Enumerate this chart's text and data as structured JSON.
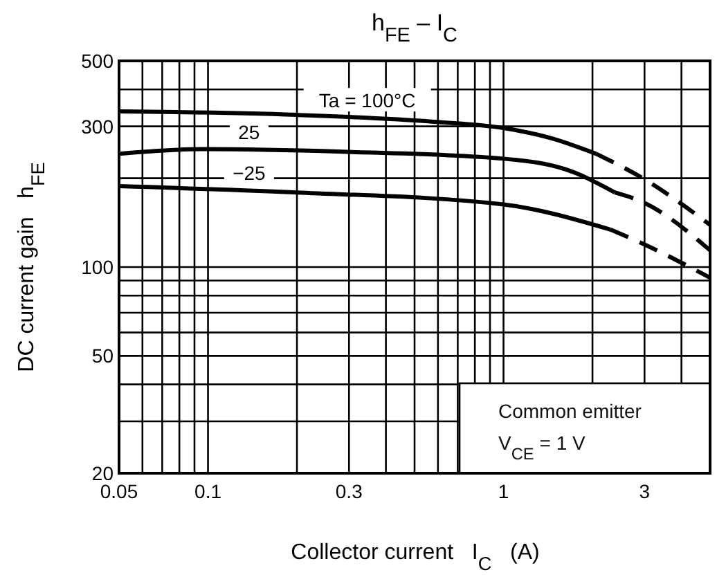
{
  "chart_data": {
    "type": "line",
    "title": "h$_{FE}$ – I$_{C}$",
    "xlabel": "Collector current   I$_{C}$   (A)",
    "ylabel": "DC current gain   h$_{FE}$",
    "log": "xy",
    "grid": true,
    "legend": false,
    "marker": "none",
    "xlim": [
      0.05,
      5
    ],
    "ylim": [
      20,
      500
    ],
    "xticks": [
      0.05,
      {
        "value": 0.06,
        "label": null
      },
      {
        "value": 0.07,
        "label": null
      },
      {
        "value": 0.08,
        "label": null
      },
      {
        "value": 0.09,
        "label": null
      },
      0.1,
      {
        "value": 0.2,
        "label": null
      },
      0.3,
      {
        "value": 0.4,
        "label": null
      },
      {
        "value": 0.5,
        "label": null
      },
      {
        "value": 0.6,
        "label": null
      },
      {
        "value": 0.7,
        "label": null
      },
      {
        "value": 0.8,
        "label": null
      },
      {
        "value": 0.9,
        "label": null
      },
      1,
      {
        "value": 2,
        "label": null
      },
      3,
      {
        "value": 4,
        "label": null
      },
      {
        "value": 5,
        "label": null
      }
    ],
    "yticks": [
      20,
      {
        "value": 30,
        "label": null
      },
      {
        "value": 40,
        "label": null
      },
      50,
      {
        "value": 60,
        "label": null
      },
      {
        "value": 70,
        "label": null
      },
      {
        "value": 80,
        "label": null
      },
      {
        "value": 90,
        "label": null
      },
      100,
      {
        "value": 200,
        "label": null
      },
      300,
      {
        "value": 400,
        "label": null
      },
      500
    ],
    "series": [
      {
        "name": "Ta = 100°C",
        "color": "#000000",
        "line_style": "solid",
        "x": [
          0.05,
          0.2,
          0.58,
          1,
          1.44,
          2.06
        ],
        "values": [
          337,
          328,
          311,
          296,
          274,
          242
        ]
      },
      {
        "color": "#000000",
        "line_style": "dashed",
        "x": [
          2.06,
          2.96,
          5
        ],
        "values": [
          242,
          200,
          139
        ]
      },
      {
        "name": "25",
        "color": "#000000",
        "line_style": "solid",
        "x": [
          0.05,
          0.096,
          0.285,
          1,
          1.72,
          2.38
        ],
        "values": [
          242,
          251,
          246,
          233,
          210,
          179
        ]
      },
      {
        "color": "#000000",
        "line_style": "dashed",
        "x": [
          2.38,
          2.96,
          5
        ],
        "values": [
          179,
          166,
          114
        ]
      },
      {
        "name": "−25",
        "color": "#000000",
        "line_style": "solid",
        "x": [
          0.05,
          0.2,
          1,
          2.3
        ],
        "values": [
          188,
          179,
          163,
          134
        ]
      },
      {
        "color": "#000000",
        "line_style": "dashed",
        "x": [
          2.3,
          2.96,
          5
        ],
        "values": [
          134,
          120,
          92
        ]
      }
    ],
    "annotations": [
      "Common emitter",
      "V$_{CE}$ = 1 V"
    ]
  }
}
